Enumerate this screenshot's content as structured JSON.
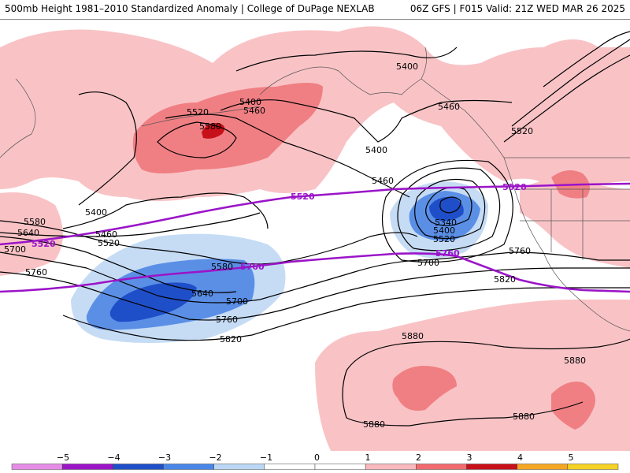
{
  "header": {
    "title": "500mb Height 1981–2010 Standardized Anomaly | College of DuPage NEXLAB",
    "run_info": "06Z GFS | F015 Valid: 21Z WED MAR 26 2025"
  },
  "map": {
    "contour_labels": [
      {
        "id": "l1",
        "text": "5400"
      },
      {
        "id": "l2",
        "text": "5400"
      },
      {
        "id": "l3",
        "text": "5460"
      },
      {
        "id": "l4",
        "text": "5460"
      },
      {
        "id": "l5",
        "text": "5520"
      },
      {
        "id": "l6",
        "text": "5580"
      },
      {
        "id": "l7",
        "text": "5400"
      },
      {
        "id": "l8",
        "text": "5460"
      },
      {
        "id": "l9",
        "text": "5520"
      },
      {
        "id": "l10",
        "text": "5400"
      },
      {
        "id": "l11",
        "text": "5460"
      },
      {
        "id": "l12",
        "text": "5520"
      },
      {
        "id": "l13",
        "text": "5580"
      },
      {
        "id": "l14",
        "text": "5640"
      },
      {
        "id": "l15",
        "text": "5700"
      },
      {
        "id": "l16",
        "text": "5760"
      },
      {
        "id": "l17",
        "text": "5580"
      },
      {
        "id": "l18",
        "text": "5640"
      },
      {
        "id": "l19",
        "text": "5700"
      },
      {
        "id": "l20",
        "text": "5760"
      },
      {
        "id": "l21",
        "text": "5820"
      },
      {
        "id": "l22",
        "text": "5340"
      },
      {
        "id": "l23",
        "text": "5400"
      },
      {
        "id": "l24",
        "text": "5520"
      },
      {
        "id": "l25",
        "text": "5700"
      },
      {
        "id": "l26",
        "text": "5760"
      },
      {
        "id": "l27",
        "text": "5820"
      },
      {
        "id": "l28",
        "text": "5880"
      },
      {
        "id": "l29",
        "text": "5880"
      },
      {
        "id": "l30",
        "text": "5880"
      },
      {
        "id": "l31",
        "text": "5880"
      }
    ],
    "purple_labels": [
      {
        "id": "p1",
        "text": "5520"
      },
      {
        "id": "p2",
        "text": "5520"
      },
      {
        "id": "p3",
        "text": "5520"
      },
      {
        "id": "p4",
        "text": "5760"
      },
      {
        "id": "p5",
        "text": "5760"
      }
    ]
  },
  "colorbar": {
    "ticks": [
      "−5",
      "−4",
      "−3",
      "−2",
      "−1",
      "0",
      "1",
      "2",
      "3",
      "4",
      "5"
    ],
    "colors": [
      "#e68ce6",
      "#9b14c8",
      "#1f4fc8",
      "#4a86e8",
      "#bcd7f5",
      "#ffffff",
      "#ffffff",
      "#f9b9bc",
      "#f06a6e",
      "#c8101a",
      "#f5a623",
      "#f5d223"
    ]
  }
}
